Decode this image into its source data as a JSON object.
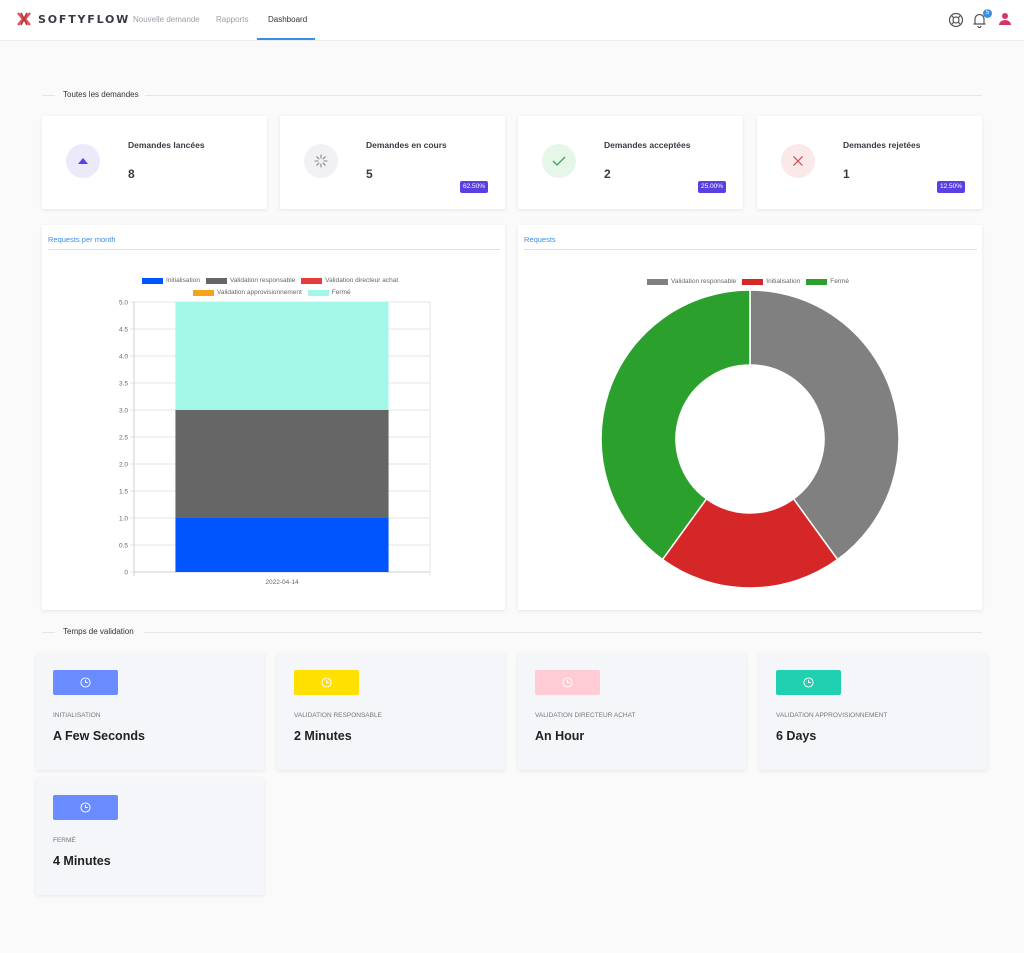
{
  "brand": {
    "name": "SOFTYFLOW"
  },
  "nav": {
    "items": [
      "Nouvelle demande",
      "Rapports",
      "Dashboard"
    ],
    "active": "Dashboard"
  },
  "notifications": {
    "count": "5"
  },
  "sections": {
    "all_requests": "Toutes les demandes",
    "validation_time": "Temps de validation"
  },
  "stats": [
    {
      "title": "Demandes lancées",
      "value": "8",
      "pct": "",
      "icon": "triangle-up-icon",
      "color": "#5b3fe3",
      "bg": "#ece9fb"
    },
    {
      "title": "Demandes en cours",
      "value": "5",
      "pct": "62.50%",
      "icon": "loader-icon",
      "color": "#888",
      "bg": "#f1f1f3"
    },
    {
      "title": "Demandes acceptées",
      "value": "2",
      "pct": "25.00%",
      "icon": "check-icon",
      "color": "#3aa55a",
      "bg": "#e6f7ea"
    },
    {
      "title": "Demandes rejetées",
      "value": "1",
      "pct": "12.50%",
      "icon": "close-icon",
      "color": "#d0454c",
      "bg": "#fbe9ea"
    }
  ],
  "charts": {
    "left_tab": "Requests per month",
    "right_tab": "Requests"
  },
  "chart_data": [
    {
      "type": "bar",
      "stacked": true,
      "categories": [
        "2022-04-14"
      ],
      "series": [
        {
          "name": "Initialisation",
          "values": [
            1
          ],
          "color": "#0055ff"
        },
        {
          "name": "Validation responsable",
          "values": [
            2
          ],
          "color": "#666666"
        },
        {
          "name": "Validation directeur achat",
          "values": [
            0
          ],
          "color": "#e83b3b"
        },
        {
          "name": "Validation approvisionnement",
          "values": [
            0
          ],
          "color": "#f5a31a"
        },
        {
          "name": "Fermé",
          "values": [
            2
          ],
          "color": "#a3f7e6"
        }
      ],
      "ylim": [
        0,
        5
      ],
      "yticks": [
        "0",
        "0.5",
        "1.0",
        "1.5",
        "2.0",
        "2.5",
        "3.0",
        "3.5",
        "4.0",
        "4.5",
        "5.0"
      ],
      "grid": true,
      "legend": "top"
    },
    {
      "type": "pie",
      "donut": true,
      "labels": [
        "Validation responsable",
        "Initialisation",
        "Fermé"
      ],
      "values": [
        2,
        1,
        2
      ],
      "colors": [
        "#808080",
        "#d62728",
        "#2ca02c"
      ],
      "legend": "top"
    }
  ],
  "validation": [
    {
      "label": "Initialisation",
      "value": "A Few Seconds",
      "color": "#6b8cff"
    },
    {
      "label": "Validation responsable",
      "value": "2 Minutes",
      "color": "#ffe000"
    },
    {
      "label": "Validation directeur achat",
      "value": "An Hour",
      "color": "#ffccd5"
    },
    {
      "label": "Validation approvisionnement",
      "value": "6 Days",
      "color": "#20d0b0"
    },
    {
      "label": "Fermé",
      "value": "4 Minutes",
      "color": "#6b8cff"
    }
  ]
}
